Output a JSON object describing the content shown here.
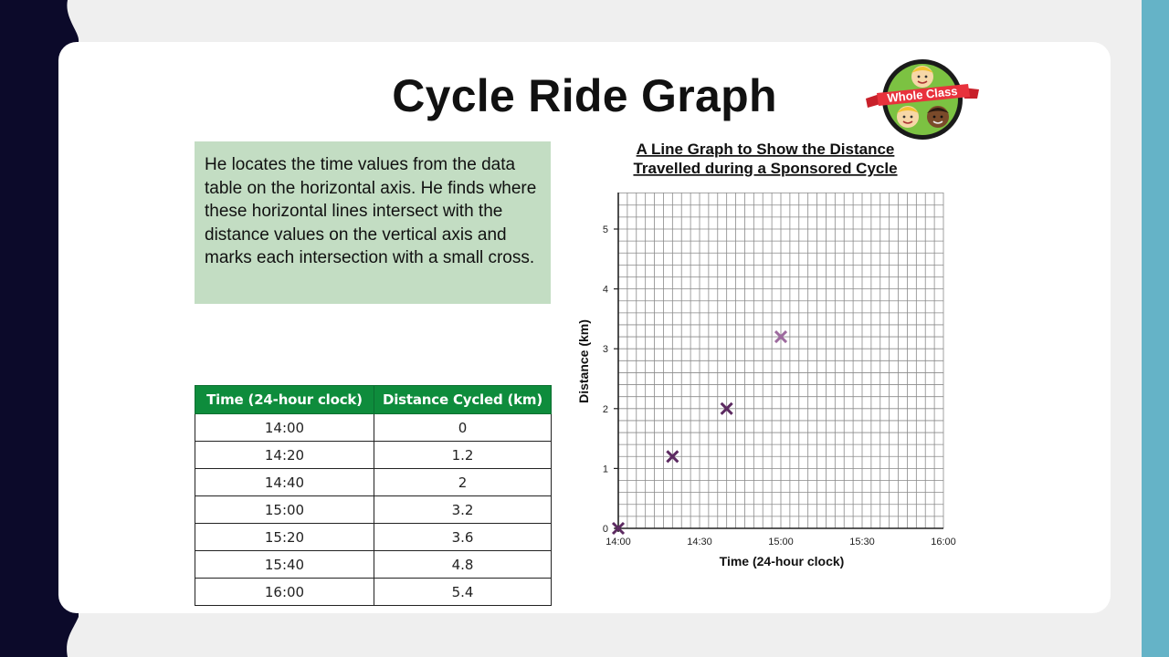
{
  "slide": {
    "title": "Cycle Ride Graph",
    "logo_text": "Whole Class",
    "info_text": "He locates the time values from the data table on the horizontal axis. He finds where these horizontal lines intersect with the distance values on the vertical axis and marks each intersection with a small cross."
  },
  "table": {
    "headers": [
      "Time (24-hour clock)",
      "Distance Cycled (km)"
    ],
    "rows": [
      [
        "14:00",
        "0"
      ],
      [
        "14:20",
        "1.2"
      ],
      [
        "14:40",
        "2"
      ],
      [
        "15:00",
        "3.2"
      ],
      [
        "15:20",
        "3.6"
      ],
      [
        "15:40",
        "4.8"
      ],
      [
        "16:00",
        "5.4"
      ]
    ]
  },
  "colors": {
    "header_green": "#0e8c3c",
    "info_box": "#c3ddc3",
    "marker_purple": "#5c2a61",
    "marker_light_purple": "#9d6a9e",
    "accent_teal": "#65b3c7",
    "dark_navy": "#0c0a2a"
  },
  "chart_data": {
    "type": "scatter",
    "title_line1": "A Line Graph to Show the Distance",
    "title_line2": "Travelled during a Sponsored Cycle",
    "xlabel": "Time (24-hour clock)",
    "ylabel": "Distance (km)",
    "x_ticks": [
      "14:00",
      "14:30",
      "15:00",
      "15:30",
      "16:00"
    ],
    "xlim": [
      "14:00",
      "16:00"
    ],
    "y_ticks": [
      0,
      1,
      2,
      3,
      4,
      5
    ],
    "ylim": [
      0,
      5.6
    ],
    "grid": true,
    "points": [
      {
        "x": "14:00",
        "y": 0,
        "color": "#5c2a61"
      },
      {
        "x": "14:20",
        "y": 1.2,
        "color": "#5c2a61"
      },
      {
        "x": "14:40",
        "y": 2,
        "color": "#5c2a61"
      },
      {
        "x": "15:00",
        "y": 3.2,
        "color": "#9d6a9e"
      }
    ]
  }
}
